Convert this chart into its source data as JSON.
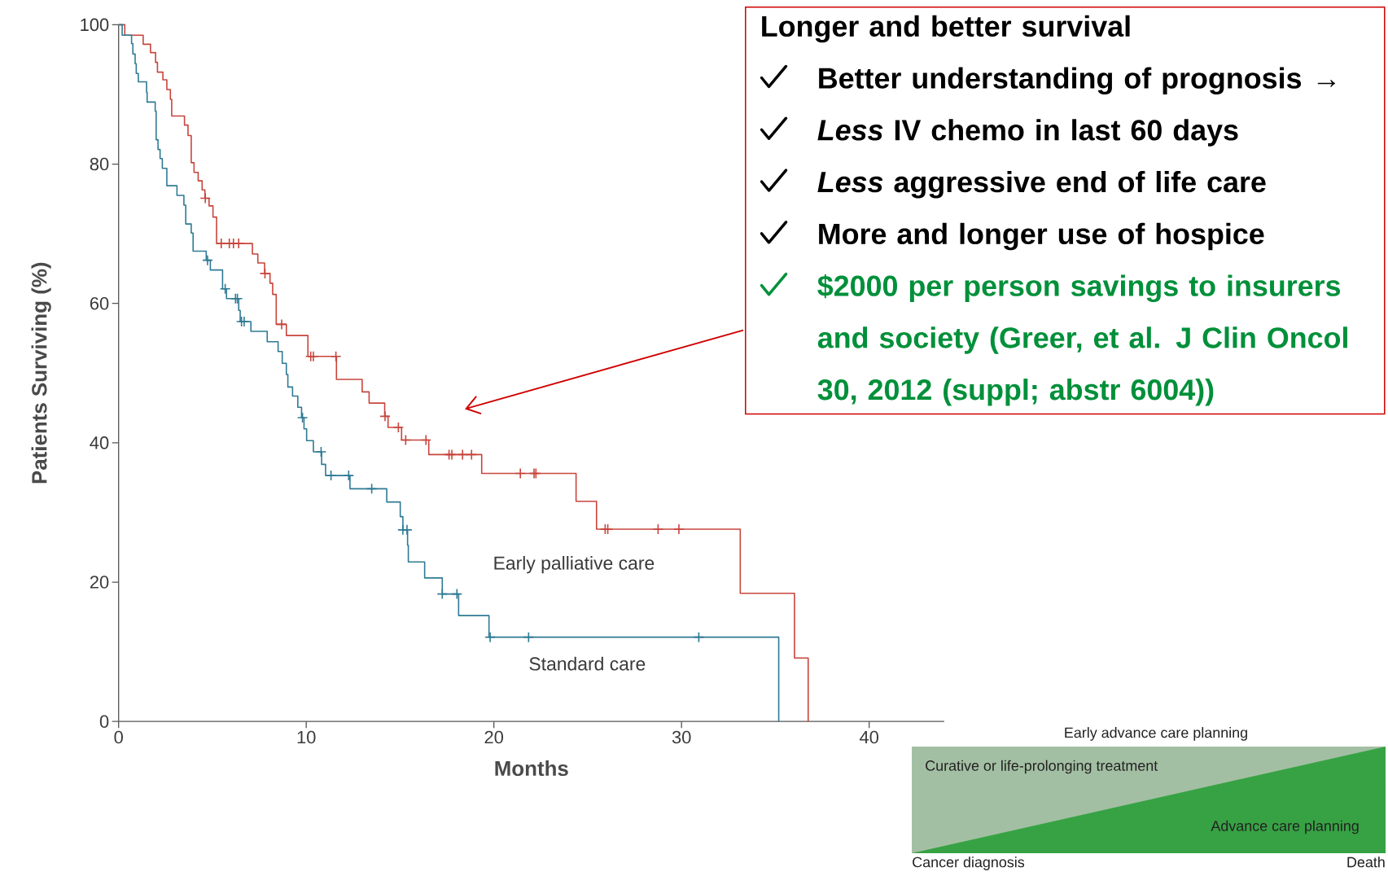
{
  "chart_data": [
    {
      "type": "step",
      "xlabel": "Months",
      "ylabel": "Patients Surviving (%)",
      "xlim": [
        0,
        44
      ],
      "ylim": [
        0,
        100
      ],
      "xticks": [
        0,
        10,
        20,
        30,
        40
      ],
      "yticks": [
        0,
        20,
        40,
        60,
        80,
        100
      ],
      "series": [
        {
          "name": "Early palliative care",
          "color": "#c8453c",
          "x": [
            0,
            0.33,
            1.31,
            1.7,
            1.97,
            2.07,
            2.36,
            2.57,
            2.76,
            2.83,
            3.51,
            3.7,
            3.87,
            4.02,
            4.24,
            4.45,
            4.6,
            4.82,
            5.03,
            5.22,
            7.13,
            7.42,
            7.78,
            8.07,
            8.21,
            8.4,
            8.94,
            10.09,
            11.61,
            12.98,
            13.35,
            14.18,
            14.36,
            15.08,
            16.53,
            19.35,
            24.38,
            25.47,
            33.13,
            36.02,
            36.75
          ],
          "values": [
            100,
            98.5,
            97.2,
            96,
            94.6,
            93.2,
            92.1,
            90.7,
            89.3,
            86.9,
            85.6,
            84.1,
            80.2,
            78.8,
            77.6,
            76.3,
            75.1,
            74.0,
            72.4,
            68.6,
            67.1,
            65.8,
            64.3,
            62.9,
            61.3,
            57.0,
            55.4,
            52.4,
            49.1,
            47.3,
            45.7,
            43.8,
            42.2,
            40.4,
            38.3,
            35.6,
            31.6,
            27.6,
            18.4,
            9.1,
            0
          ]
        },
        {
          "name": "Standard care",
          "color": "#2f7a94",
          "x": [
            0,
            0.19,
            0.69,
            0.76,
            0.88,
            0.94,
            1.05,
            1.49,
            1.52,
            1.95,
            2.0,
            2.1,
            2.21,
            2.33,
            2.57,
            3.11,
            3.48,
            3.58,
            3.87,
            3.97,
            4.67,
            4.89,
            5.54,
            5.75,
            6.4,
            6.48,
            7.05,
            7.92,
            8.5,
            8.72,
            8.94,
            9.02,
            9.27,
            9.55,
            9.75,
            9.88,
            10.02,
            10.38,
            10.82,
            11.03,
            12.33,
            14.29,
            15.01,
            15.15,
            15.4,
            15.44,
            16.31,
            17.25,
            18.12,
            19.74,
            35.18
          ],
          "values": [
            100,
            98.5,
            97.3,
            95.8,
            94.4,
            93.0,
            91.8,
            90.3,
            88.9,
            87.6,
            83.5,
            82.1,
            80.8,
            79.4,
            76.9,
            75.5,
            74.1,
            71.4,
            70.1,
            67.5,
            66.2,
            64.8,
            62.1,
            60.7,
            59.0,
            57.4,
            56.0,
            54.5,
            53.1,
            51.4,
            49.8,
            48.0,
            46.7,
            45.1,
            43.6,
            42.0,
            40.3,
            38.7,
            36.9,
            35.3,
            33.4,
            31.5,
            29.4,
            27.5,
            25.3,
            22.9,
            20.6,
            18.3,
            15.2,
            12.1,
            0
          ]
        },
        {
          "type": "scatter",
          "marker": "cross",
          "color": "#c8453c",
          "x": [
            4.62,
            5.47,
            5.9,
            6.12,
            6.4,
            7.8,
            8.69,
            10.24,
            10.38,
            11.58,
            14.2,
            14.91,
            15.3,
            16.38,
            17.61,
            17.76,
            18.33,
            18.81,
            21.41,
            22.14,
            22.24,
            25.93,
            26.07,
            28.75,
            29.86
          ],
          "values": [
            75.1,
            68.6,
            68.6,
            68.6,
            68.6,
            64.3,
            57.0,
            52.4,
            52.4,
            52.4,
            43.8,
            42.2,
            40.4,
            40.4,
            38.3,
            38.3,
            38.3,
            38.3,
            35.6,
            35.6,
            35.6,
            27.6,
            27.6,
            27.6,
            27.6
          ]
        },
        {
          "type": "scatter",
          "marker": "cross",
          "color": "#2f7a94",
          "x": [
            4.74,
            5.68,
            6.23,
            6.33,
            6.55,
            6.69,
            9.8,
            10.79,
            11.32,
            12.26,
            13.49,
            15.15,
            15.37,
            17.25,
            18.03,
            19.8,
            21.85,
            30.92
          ],
          "values": [
            66.2,
            62.1,
            60.7,
            60.7,
            57.4,
            57.4,
            43.6,
            38.7,
            35.3,
            35.3,
            33.4,
            27.5,
            27.5,
            18.3,
            18.3,
            12.1,
            12.1,
            12.1
          ]
        }
      ],
      "annotations": [
        "Longer and better survival",
        "Better understanding of prognosis →",
        "*Less* IV chemo in last 60 days",
        "*Less* aggressive end of life care",
        "More and longer use of hospice",
        "$2000 per person savings to insurers and society (Greer, et al. J Clin Oncol 30, 2012 (suppl; abstr 6004))"
      ]
    },
    {
      "type": "other",
      "title": "Early advance care planning",
      "annotations": [
        "Curative or life-prolonging treatment",
        "Advance care planning",
        "Cancer diagnosis",
        "Death"
      ]
    }
  ]
}
